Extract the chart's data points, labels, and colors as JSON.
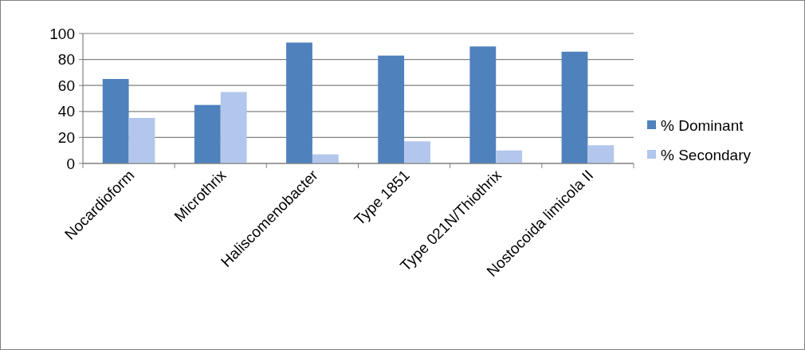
{
  "chart_data": {
    "type": "bar",
    "categories": [
      "Nocardioform",
      "Microthrix",
      "Haliscomenobacter",
      "Type 1851",
      "Type 021N/Thiothrix",
      "Nostocoida limicola II"
    ],
    "series": [
      {
        "name": "% Dominant",
        "color": "#4f81bd",
        "values": [
          65,
          45,
          93,
          83,
          90,
          86
        ]
      },
      {
        "name": "% Secondary",
        "color": "#b3c6ec",
        "values": [
          35,
          55,
          7,
          17,
          10,
          14
        ]
      }
    ],
    "ylim": [
      0,
      100
    ],
    "yticks": [
      0,
      20,
      40,
      60,
      80,
      100
    ],
    "grid": "y",
    "legend": "right"
  }
}
